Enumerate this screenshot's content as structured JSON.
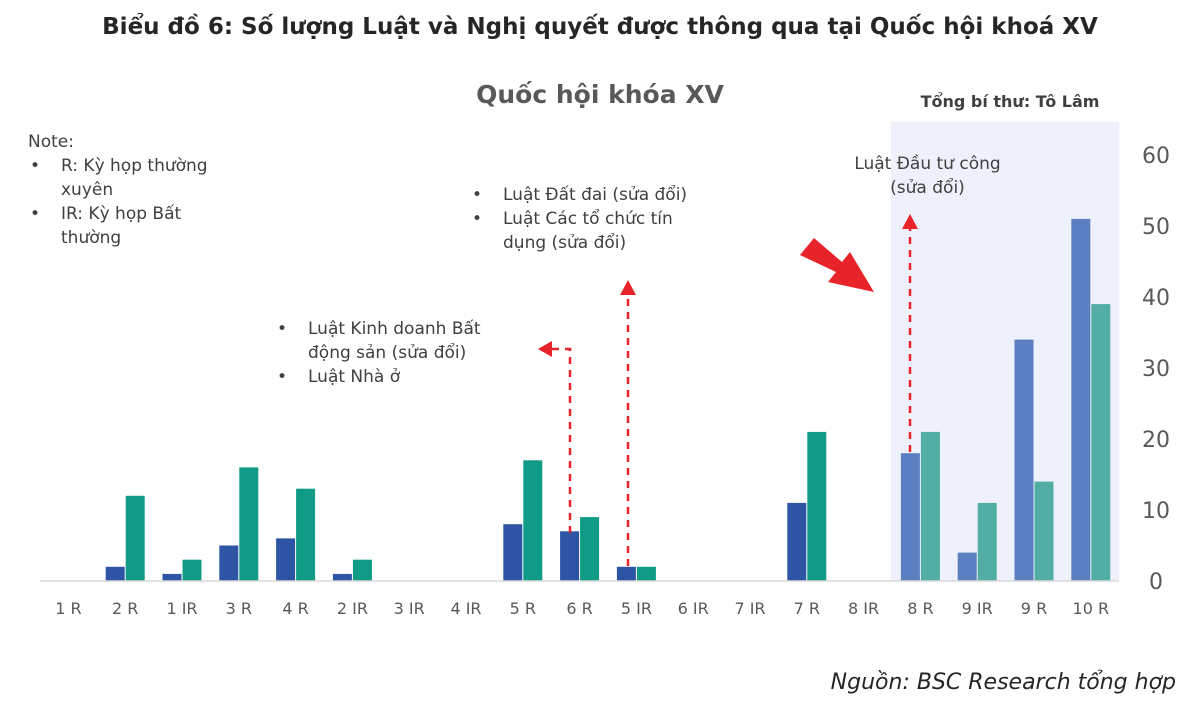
{
  "header": {
    "figure_title": "Biểu đồ 6: Số lượng Luật và Nghị quyết được thông qua tại Quốc hội khoá XV"
  },
  "note": {
    "heading": "Note:",
    "items": [
      "R: Kỳ họp thường xuyên",
      "IR: Kỳ họp Bất thường"
    ]
  },
  "annotations": {
    "group_1": [
      "Luật Kinh doanh Bất động sản (sửa đổi)",
      "Luật Nhà ở"
    ],
    "group_2": [
      "Luật Đất đai (sửa đổi)",
      "Luật Các tổ chức tín dụng (sửa đổi)"
    ],
    "group_3": "Luật Đầu tư công (sửa đổi)"
  },
  "source": "Nguồn: BSC Research tổng hợp",
  "colors": {
    "series_1": "#2e55a5",
    "series_2": "#0f9b85",
    "series_1_highlight": "#5b7fc0",
    "series_2_highlight": "#52ada5",
    "highlight_band": "#eef1fb",
    "arrow": "#e8232a",
    "axis": "#d9d9d9"
  },
  "chart_data": {
    "type": "bar",
    "title": "Quốc hội khóa XV",
    "highlight_label": "Tổng bí thư: Tô Lâm",
    "highlight_range": [
      "8 R",
      "10 R"
    ],
    "categories": [
      "1 R",
      "2 R",
      "1 IR",
      "3 R",
      "4 R",
      "2 IR",
      "3 IR",
      "4 IR",
      "5 R",
      "6 R",
      "5 IR",
      "6 IR",
      "7 IR",
      "7 R",
      "8 IR",
      "8 R",
      "9 IR",
      "9 R",
      "10 R"
    ],
    "series": [
      {
        "values": [
          0,
          2,
          1,
          5,
          6,
          1,
          0,
          0,
          8,
          7,
          2,
          0,
          0,
          11,
          0,
          18,
          4,
          34,
          51
        ]
      },
      {
        "values": [
          0,
          12,
          3,
          16,
          13,
          3,
          0,
          0,
          17,
          9,
          2,
          0,
          0,
          21,
          0,
          21,
          11,
          14,
          39
        ]
      }
    ],
    "y_axis": {
      "position": "right",
      "min": 0,
      "max": 60,
      "ticks": [
        0,
        10,
        20,
        30,
        40,
        50,
        60
      ]
    },
    "grid": false,
    "legend": "none"
  }
}
